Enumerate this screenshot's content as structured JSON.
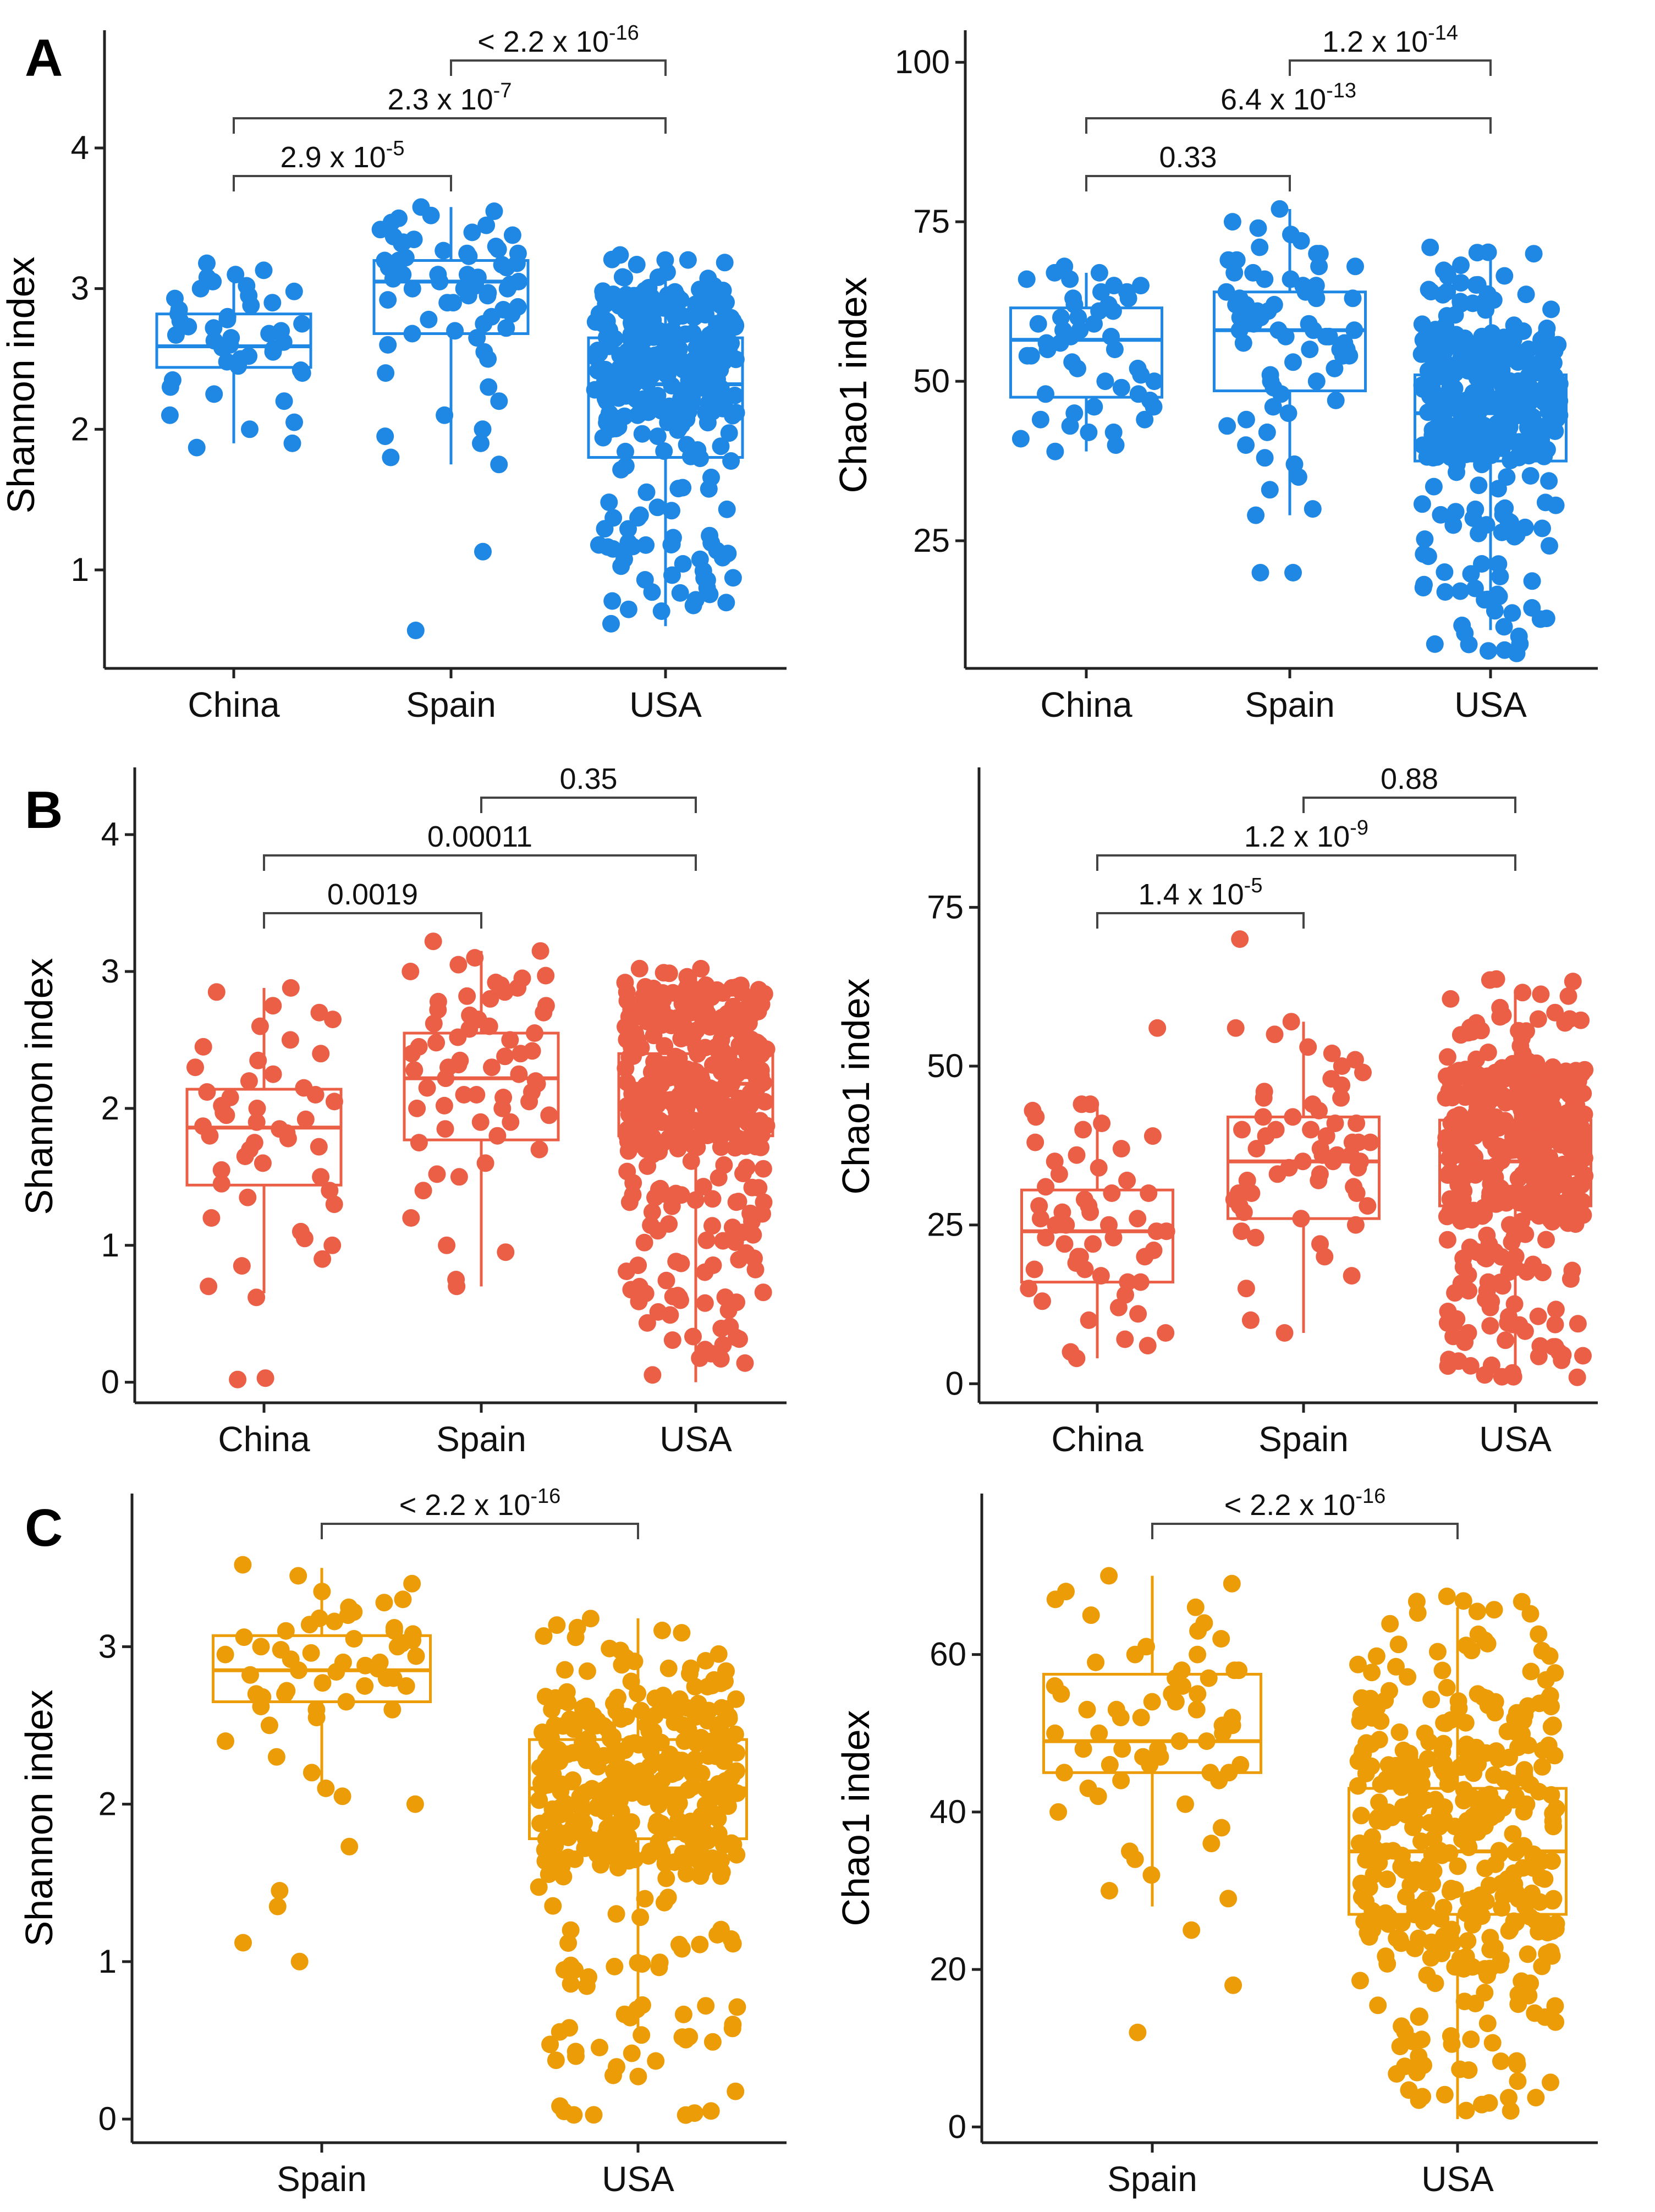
{
  "chart_data": [
    {
      "id": "A-shannon",
      "type": "box-jitter",
      "panel": "A",
      "color": "#1f88e5",
      "ylabel": "Shannon index",
      "ylim": [
        0.3,
        4.7
      ],
      "yticks": [
        1,
        2,
        3,
        4
      ],
      "categories": [
        "China",
        "Spain",
        "USA"
      ],
      "boxes": [
        {
          "q1": 2.44,
          "median": 2.59,
          "q3": 2.82,
          "whisker_low": 1.9,
          "whisker_high": 3.15,
          "n": 45,
          "points": [
            1.87,
            1.9,
            2.0,
            2.05,
            2.1,
            2.2,
            2.25,
            2.3,
            2.35,
            2.4,
            2.42,
            2.45,
            2.48,
            2.5,
            2.52,
            2.55,
            2.57,
            2.58,
            2.6,
            2.62,
            2.63,
            2.65,
            2.67,
            2.68,
            2.7,
            2.72,
            2.73,
            2.75,
            2.77,
            2.78,
            2.8,
            2.82,
            2.85,
            2.88,
            2.9,
            2.93,
            2.95,
            2.98,
            3.0,
            3.02,
            3.05,
            3.08,
            3.1,
            3.13,
            3.18
          ]
        },
        {
          "q1": 2.68,
          "median": 3.05,
          "q3": 3.2,
          "whisker_low": 1.75,
          "whisker_high": 3.58,
          "n": 70,
          "points": [
            0.57,
            1.13,
            1.75,
            1.8,
            1.9,
            1.95,
            2.0,
            2.1,
            2.2,
            2.3,
            2.4,
            2.5,
            2.55,
            2.6,
            2.65,
            2.68,
            2.7,
            2.72,
            2.75,
            2.78,
            2.8,
            2.82,
            2.85,
            2.87,
            2.9,
            2.92,
            2.95,
            2.97,
            3.0,
            3.0,
            3.02,
            3.03,
            3.05,
            3.05,
            3.07,
            3.08,
            3.1,
            3.1,
            3.12,
            3.13,
            3.15,
            3.15,
            3.17,
            3.18,
            3.2,
            3.2,
            3.22,
            3.23,
            3.25,
            3.25,
            3.27,
            3.28,
            3.3,
            3.32,
            3.33,
            3.35,
            3.37,
            3.38,
            3.4,
            3.42,
            3.45,
            3.47,
            3.5,
            3.52,
            3.55,
            3.58,
            3.0,
            2.9,
            3.1,
            2.95
          ]
        },
        {
          "q1": 1.8,
          "median": 2.32,
          "q3": 2.65,
          "whisker_low": 0.6,
          "whisker_high": 3.25,
          "n": 360,
          "range": [
            0.6,
            3.25
          ],
          "dense_range": [
            2.0,
            3.0
          ]
        }
      ],
      "comparisons": [
        {
          "from": 0,
          "to": 1,
          "base": "2.9 x 10",
          "exp": "-5",
          "level": 1
        },
        {
          "from": 0,
          "to": 2,
          "base": "2.3 x 10",
          "exp": "-7",
          "level": 2
        },
        {
          "from": 1,
          "to": 2,
          "base": "< 2.2 x 10",
          "exp": "-16",
          "level": 3
        }
      ]
    },
    {
      "id": "A-chao1",
      "type": "box-jitter",
      "panel": "A",
      "color": "#1f88e5",
      "ylabel": "Chao1 index",
      "ylim": [
        5,
        102
      ],
      "yticks": [
        25,
        50,
        75,
        100
      ],
      "categories": [
        "China",
        "Spain",
        "USA"
      ],
      "boxes": [
        {
          "q1": 47.5,
          "median": 56.5,
          "q3": 61.5,
          "whisker_low": 39,
          "whisker_high": 67,
          "n": 50,
          "points": [
            39,
            40,
            41,
            42,
            42,
            43,
            44,
            44,
            45,
            46,
            46,
            47,
            48,
            48,
            49,
            50,
            50,
            51,
            52,
            52,
            53,
            54,
            54,
            55,
            55,
            56,
            56,
            57,
            57,
            58,
            58,
            59,
            59,
            60,
            60,
            61,
            61,
            62,
            62,
            63,
            63,
            64,
            64,
            65,
            65,
            66,
            66,
            67,
            67,
            68
          ]
        },
        {
          "q1": 48.5,
          "median": 58,
          "q3": 64,
          "whisker_low": 29,
          "whisker_high": 77,
          "n": 70,
          "points": [
            20,
            20,
            29,
            30,
            33,
            35,
            37,
            38,
            40,
            42,
            43,
            44,
            45,
            46,
            47,
            48,
            49,
            50,
            50,
            51,
            52,
            53,
            54,
            54,
            55,
            55,
            56,
            56,
            57,
            57,
            58,
            58,
            58,
            59,
            59,
            60,
            60,
            60,
            61,
            61,
            62,
            62,
            63,
            63,
            64,
            64,
            65,
            65,
            66,
            66,
            67,
            67,
            68,
            68,
            69,
            69,
            70,
            70,
            71,
            72,
            73,
            74,
            75,
            77,
            60,
            58,
            62,
            57,
            55,
            63
          ]
        },
        {
          "q1": 37.5,
          "median": 45,
          "q3": 51,
          "whisker_low": 11,
          "whisker_high": 71,
          "n": 360,
          "range": [
            6,
            71
          ],
          "dense_range": [
            38,
            58
          ]
        }
      ],
      "comparisons": [
        {
          "from": 0,
          "to": 1,
          "base": "0.33",
          "exp": "",
          "level": 1
        },
        {
          "from": 0,
          "to": 2,
          "base": "6.4 x 10",
          "exp": "-13",
          "level": 2
        },
        {
          "from": 1,
          "to": 2,
          "base": "1.2 x 10",
          "exp": "-14",
          "level": 3
        }
      ]
    },
    {
      "id": "B-shannon",
      "type": "box-jitter",
      "panel": "B",
      "color": "#ec5f47",
      "ylabel": "Shannon index",
      "ylim": [
        -0.15,
        4.35
      ],
      "yticks": [
        0,
        1,
        2,
        3,
        4
      ],
      "categories": [
        "China",
        "Spain",
        "USA"
      ],
      "boxes": [
        {
          "q1": 1.44,
          "median": 1.86,
          "q3": 2.14,
          "whisker_low": 0.65,
          "whisker_high": 2.88,
          "n": 50,
          "points": [
            0.02,
            0.03,
            0.62,
            0.7,
            0.85,
            0.9,
            1.0,
            1.05,
            1.1,
            1.2,
            1.3,
            1.35,
            1.4,
            1.45,
            1.5,
            1.55,
            1.6,
            1.65,
            1.7,
            1.72,
            1.75,
            1.78,
            1.8,
            1.82,
            1.85,
            1.87,
            1.9,
            1.92,
            1.95,
            1.97,
            2.0,
            2.02,
            2.05,
            2.08,
            2.1,
            2.12,
            2.15,
            2.2,
            2.25,
            2.3,
            2.35,
            2.4,
            2.45,
            2.5,
            2.6,
            2.65,
            2.7,
            2.75,
            2.85,
            2.88
          ]
        },
        {
          "q1": 1.77,
          "median": 2.22,
          "q3": 2.55,
          "whisker_low": 0.7,
          "whisker_high": 3.15,
          "n": 65,
          "points": [
            0.7,
            0.75,
            0.95,
            1.0,
            1.2,
            1.4,
            1.5,
            1.52,
            1.6,
            1.7,
            1.75,
            1.8,
            1.85,
            1.9,
            1.95,
            2.0,
            2.02,
            2.05,
            2.08,
            2.1,
            2.12,
            2.15,
            2.18,
            2.2,
            2.22,
            2.25,
            2.28,
            2.3,
            2.32,
            2.35,
            2.38,
            2.4,
            2.42,
            2.45,
            2.48,
            2.5,
            2.52,
            2.55,
            2.58,
            2.6,
            2.62,
            2.65,
            2.68,
            2.7,
            2.72,
            2.75,
            2.78,
            2.8,
            2.82,
            2.85,
            2.88,
            2.9,
            2.92,
            2.95,
            2.97,
            3.0,
            3.05,
            3.1,
            3.15,
            3.22,
            2.3,
            2.1,
            2.0,
            1.9,
            2.4
          ]
        },
        {
          "q1": 1.8,
          "median": 2.18,
          "q3": 2.4,
          "whisker_low": 0.0,
          "whisker_high": 3.05,
          "n": 400,
          "range": [
            0.0,
            3.05
          ],
          "dense_range": [
            1.7,
            2.9
          ]
        }
      ],
      "comparisons": [
        {
          "from": 0,
          "to": 1,
          "base": "0.0019",
          "exp": "",
          "level": 1
        },
        {
          "from": 0,
          "to": 2,
          "base": "0.00011",
          "exp": "",
          "level": 2
        },
        {
          "from": 1,
          "to": 2,
          "base": "0.35",
          "exp": "",
          "level": 3
        }
      ]
    },
    {
      "id": "B-chao1",
      "type": "box-jitter",
      "panel": "B",
      "color": "#ec5f47",
      "ylabel": "Chao1 index",
      "ylim": [
        -3,
        94
      ],
      "yticks": [
        0,
        25,
        50,
        75
      ],
      "categories": [
        "China",
        "Spain",
        "USA"
      ],
      "boxes": [
        {
          "q1": 16,
          "median": 24,
          "q3": 30.5,
          "whisker_low": 4,
          "whisker_high": 44,
          "n": 55,
          "points": [
            4,
            5,
            6,
            7,
            8,
            10,
            11,
            12,
            13,
            14,
            15,
            16,
            16,
            17,
            18,
            18,
            19,
            20,
            20,
            21,
            22,
            22,
            23,
            23,
            24,
            24,
            25,
            25,
            26,
            26,
            27,
            27,
            28,
            28,
            29,
            30,
            30,
            31,
            32,
            33,
            34,
            35,
            36,
            37,
            38,
            39,
            40,
            41,
            42,
            43,
            44,
            44,
            56,
            20,
            25
          ]
        },
        {
          "q1": 26,
          "median": 35,
          "q3": 42,
          "whisker_low": 8,
          "whisker_high": 57,
          "n": 60,
          "points": [
            8,
            10,
            15,
            17,
            20,
            22,
            23,
            24,
            25,
            26,
            27,
            28,
            29,
            30,
            30,
            31,
            32,
            33,
            33,
            34,
            34,
            35,
            35,
            36,
            36,
            37,
            37,
            38,
            38,
            39,
            39,
            40,
            40,
            41,
            41,
            42,
            42,
            43,
            44,
            45,
            46,
            47,
            48,
            49,
            50,
            51,
            52,
            53,
            55,
            56,
            57,
            70,
            35,
            32,
            38,
            30,
            28,
            45,
            40,
            36
          ]
        },
        {
          "q1": 28,
          "median": 35,
          "q3": 41.5,
          "whisker_low": 1,
          "whisker_high": 62,
          "n": 420,
          "range": [
            1,
            64
          ],
          "dense_range": [
            25,
            50
          ]
        }
      ],
      "comparisons": [
        {
          "from": 0,
          "to": 1,
          "base": "1.4 x 10",
          "exp": "-5",
          "level": 1
        },
        {
          "from": 0,
          "to": 2,
          "base": "1.2 x 10",
          "exp": "-9",
          "level": 2
        },
        {
          "from": 1,
          "to": 2,
          "base": "0.88",
          "exp": "",
          "level": 3
        }
      ]
    },
    {
      "id": "C-shannon",
      "type": "box-jitter",
      "panel": "C",
      "color": "#ec9c06",
      "ylabel": "Shannon index",
      "ylim": [
        -0.15,
        3.85
      ],
      "yticks": [
        0,
        1,
        2,
        3
      ],
      "categories": [
        "Spain",
        "USA"
      ],
      "boxes": [
        {
          "q1": 2.65,
          "median": 2.85,
          "q3": 3.07,
          "whisker_low": 2.08,
          "whisker_high": 3.5,
          "n": 60,
          "points": [
            1.0,
            1.12,
            1.35,
            1.45,
            1.73,
            2.0,
            2.05,
            2.1,
            2.2,
            2.3,
            2.4,
            2.5,
            2.55,
            2.6,
            2.62,
            2.65,
            2.68,
            2.7,
            2.72,
            2.75,
            2.77,
            2.8,
            2.82,
            2.84,
            2.85,
            2.86,
            2.88,
            2.9,
            2.92,
            2.94,
            2.96,
            2.98,
            3.0,
            3.02,
            3.04,
            3.06,
            3.08,
            3.1,
            3.12,
            3.14,
            3.16,
            3.18,
            3.2,
            3.22,
            3.25,
            3.28,
            3.3,
            3.35,
            3.4,
            3.45,
            3.52,
            2.9,
            2.8,
            3.0,
            2.7,
            2.95,
            3.05,
            2.6,
            2.75,
            3.1
          ]
        },
        {
          "q1": 1.78,
          "median": 2.1,
          "q3": 2.41,
          "whisker_low": 0.55,
          "whisker_high": 3.18,
          "n": 400,
          "range": [
            0.0,
            3.18
          ],
          "dense_range": [
            1.6,
            2.7
          ]
        }
      ],
      "comparisons": [
        {
          "from": 0,
          "to": 1,
          "base": "< 2.2 x 10",
          "exp": "-16",
          "level": 1
        }
      ]
    },
    {
      "id": "C-chao1",
      "type": "box-jitter",
      "panel": "C",
      "color": "#ec9c06",
      "ylabel": "Chao1 index",
      "ylim": [
        -2,
        78
      ],
      "yticks": [
        0,
        20,
        40,
        60
      ],
      "categories": [
        "Spain",
        "USA"
      ],
      "boxes": [
        {
          "q1": 45,
          "median": 49,
          "q3": 57.5,
          "whisker_low": 28,
          "whisker_high": 70,
          "n": 65,
          "points": [
            12,
            18,
            25,
            29,
            30,
            32,
            34,
            35,
            36,
            38,
            40,
            41,
            42,
            43,
            44,
            44,
            45,
            45,
            46,
            46,
            47,
            47,
            48,
            48,
            49,
            49,
            50,
            50,
            51,
            51,
            52,
            52,
            53,
            53,
            54,
            54,
            55,
            55,
            56,
            56,
            57,
            57,
            58,
            58,
            59,
            60,
            60,
            61,
            62,
            63,
            64,
            65,
            66,
            67,
            68,
            69,
            70,
            50,
            48,
            52,
            46,
            55,
            58,
            45,
            53
          ]
        },
        {
          "q1": 27,
          "median": 35,
          "q3": 43,
          "whisker_low": 1,
          "whisker_high": 66,
          "n": 400,
          "range": [
            1,
            68
          ],
          "dense_range": [
            20,
            55
          ]
        }
      ],
      "comparisons": [
        {
          "from": 0,
          "to": 1,
          "base": "< 2.2 x 10",
          "exp": "-16",
          "level": 1
        }
      ]
    }
  ],
  "panel_labels": {
    "A": "A",
    "B": "B",
    "C": "C"
  }
}
